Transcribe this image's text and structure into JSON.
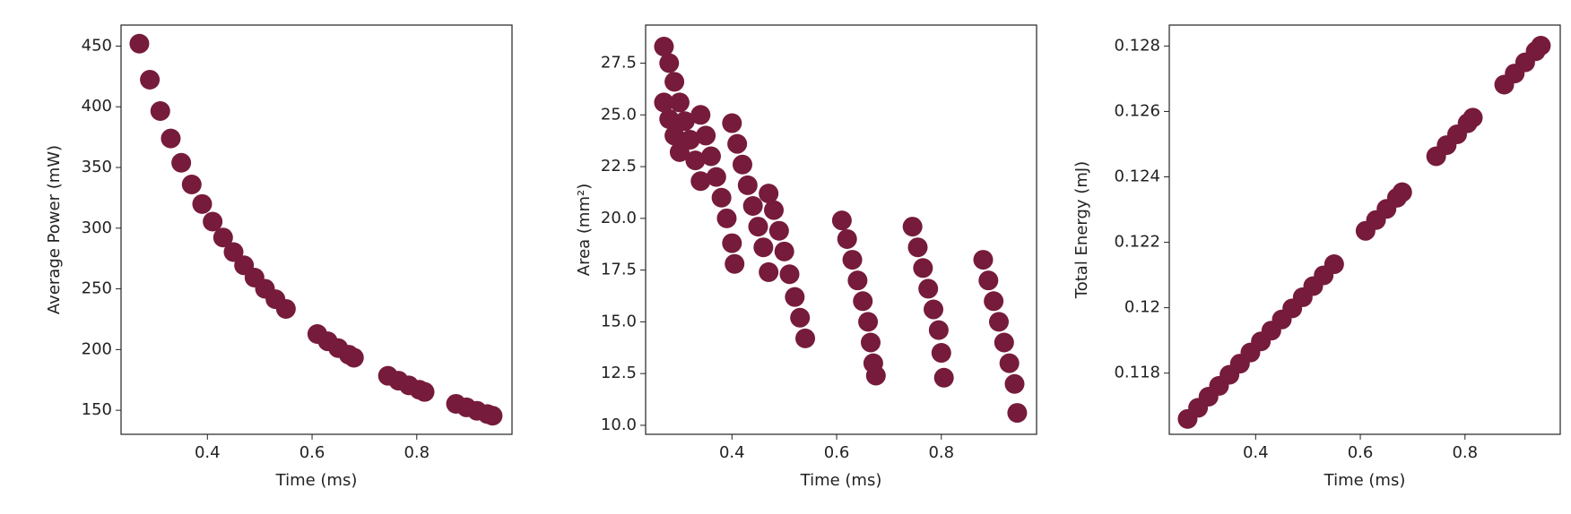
{
  "chart_data": [
    {
      "type": "scatter",
      "xlabel": "Time (ms)",
      "ylabel": "Average Power (mW)",
      "color": "#761b3b",
      "x": [
        0.27,
        0.29,
        0.31,
        0.33,
        0.35,
        0.37,
        0.39,
        0.41,
        0.43,
        0.45,
        0.47,
        0.49,
        0.51,
        0.53,
        0.55,
        0.61,
        0.63,
        0.65,
        0.67,
        0.68,
        0.745,
        0.765,
        0.785,
        0.805,
        0.815,
        0.875,
        0.895,
        0.915,
        0.935,
        0.945
      ],
      "values": [
        452,
        422.3,
        396.5,
        373.9,
        353.9,
        336,
        319.9,
        305.4,
        292.3,
        280.3,
        269.4,
        259.3,
        250.1,
        241.5,
        233.5,
        212.8,
        206.8,
        201.2,
        195.8,
        193.3,
        178.4,
        174.4,
        170.5,
        166.9,
        165.1,
        155.3,
        152.4,
        149.6,
        146.9,
        145.5
      ],
      "xlim": [
        0.235,
        0.982
      ],
      "xticks": [
        0.4,
        0.6,
        0.8
      ],
      "ylim": [
        130.2,
        467.3
      ],
      "yticks": [
        150,
        200,
        250,
        300,
        350,
        400,
        450
      ]
    },
    {
      "type": "scatter",
      "xlabel": "Time (ms)",
      "ylabel": "Area (mm²)",
      "color": "#761b3b",
      "x": [
        0.27,
        0.28,
        0.29,
        0.3,
        0.31,
        0.32,
        0.33,
        0.34,
        0.27,
        0.28,
        0.29,
        0.3,
        0.34,
        0.35,
        0.36,
        0.37,
        0.38,
        0.39,
        0.4,
        0.405,
        0.4,
        0.41,
        0.42,
        0.43,
        0.44,
        0.45,
        0.46,
        0.47,
        0.47,
        0.48,
        0.49,
        0.5,
        0.51,
        0.52,
        0.53,
        0.54,
        0.61,
        0.62,
        0.63,
        0.64,
        0.65,
        0.66,
        0.665,
        0.67,
        0.675,
        0.745,
        0.755,
        0.765,
        0.775,
        0.785,
        0.795,
        0.8,
        0.805,
        0.88,
        0.89,
        0.9,
        0.91,
        0.92,
        0.93,
        0.94,
        0.945
      ],
      "values": [
        28.3,
        27.5,
        26.6,
        25.6,
        24.7,
        23.8,
        22.8,
        21.8,
        25.6,
        24.8,
        24.0,
        23.2,
        25.0,
        24.0,
        23.0,
        22.0,
        21.0,
        20.0,
        18.8,
        17.8,
        24.6,
        23.6,
        22.6,
        21.6,
        20.6,
        19.6,
        18.6,
        17.4,
        21.2,
        20.4,
        19.4,
        18.4,
        17.3,
        16.2,
        15.2,
        14.2,
        19.9,
        19.0,
        18.0,
        17.0,
        16.0,
        15.0,
        14.0,
        13.0,
        12.4,
        19.6,
        18.6,
        17.6,
        16.6,
        15.6,
        14.6,
        13.5,
        12.3,
        18.0,
        17.0,
        16.0,
        15.0,
        14.0,
        13.0,
        12.0,
        10.6
      ],
      "xlim": [
        0.235,
        0.982
      ],
      "xticks": [
        0.4,
        0.6,
        0.8
      ],
      "ylim": [
        9.565,
        29.34
      ],
      "yticks": [
        {
          "value": 10,
          "label": "10.0"
        },
        12.5,
        {
          "value": 15,
          "label": "15.0"
        },
        17.5,
        {
          "value": 20,
          "label": "20.0"
        },
        22.5,
        {
          "value": 25,
          "label": "25.0"
        },
        27.5
      ]
    },
    {
      "type": "scatter",
      "xlabel": "Time (ms)",
      "ylabel": "Total Energy (mJ)",
      "color": "#761b3b",
      "x": [
        0.27,
        0.29,
        0.31,
        0.33,
        0.35,
        0.37,
        0.39,
        0.41,
        0.43,
        0.45,
        0.47,
        0.49,
        0.51,
        0.53,
        0.55,
        0.61,
        0.63,
        0.65,
        0.67,
        0.68,
        0.745,
        0.765,
        0.785,
        0.805,
        0.815,
        0.875,
        0.895,
        0.915,
        0.935,
        0.945
      ],
      "values": [
        0.1166,
        0.11694,
        0.11728,
        0.11761,
        0.11795,
        0.11829,
        0.11863,
        0.11897,
        0.1193,
        0.11964,
        0.11998,
        0.12032,
        0.12066,
        0.12099,
        0.12133,
        0.12235,
        0.12268,
        0.12302,
        0.12336,
        0.12353,
        0.12463,
        0.12497,
        0.1253,
        0.12564,
        0.12581,
        0.12682,
        0.12716,
        0.1275,
        0.12784,
        0.12801
      ],
      "xlim": [
        0.235,
        0.982
      ],
      "xticks": [
        0.4,
        0.6,
        0.8
      ],
      "ylim": [
        0.11613,
        0.12864
      ],
      "yticks": [
        0.118,
        0.12,
        0.122,
        0.124,
        0.126,
        0.128
      ]
    }
  ]
}
